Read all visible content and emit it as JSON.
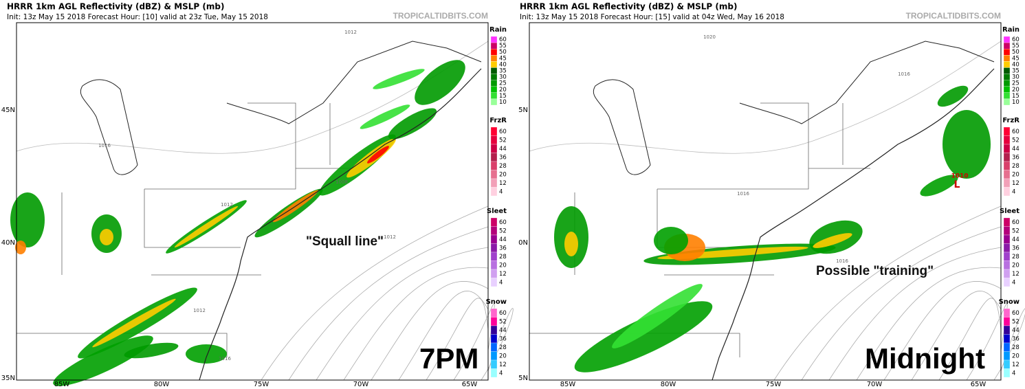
{
  "panels": [
    {
      "title": "HRRR 1km AGL Reflectivity (dBZ) & MSLP (mb)",
      "subtitle": "Init: 13z May 15 2018   Forecast Hour: [10]   valid at 23z Tue, May 15 2018",
      "watermark": "TROPICALTIDBITS.COM",
      "lat_labels": [
        "45N",
        "40N",
        "35N"
      ],
      "lon_labels": [
        "85W",
        "80W",
        "75W",
        "70W",
        "65W"
      ],
      "isobar_labels": [
        "1012",
        "1016",
        "1012",
        "1008",
        "1012",
        "1012",
        "1016"
      ],
      "annotation": "\"Squall line\"",
      "time_label": "7PM"
    },
    {
      "title": "HRRR 1km AGL Reflectivity (dBZ) & MSLP (mb)",
      "subtitle": "Init: 13z May 15 2018   Forecast Hour: [15]   valid at 04z Wed, May 16 2018",
      "watermark": "TROPICALTIDBITS.COM",
      "lat_labels": [
        "5N",
        "0N",
        "5N"
      ],
      "lon_labels": [
        "85W",
        "80W",
        "75W",
        "70W",
        "65W"
      ],
      "isobar_labels": [
        "1020",
        "1016",
        "1016",
        "1016",
        "1010",
        "L"
      ],
      "annotation": "Possible \"training\"",
      "time_label": "Midnight"
    }
  ],
  "legend": [
    {
      "name": "Rain",
      "labels": [
        60,
        55,
        50,
        45,
        40,
        35,
        30,
        25,
        20,
        15,
        10
      ],
      "colors": [
        "#ff33ff",
        "#cc0066",
        "#ff0000",
        "#ff8000",
        "#ffcc00",
        "#005a00",
        "#007a00",
        "#009a00",
        "#00c000",
        "#33e033",
        "#99ff99"
      ]
    },
    {
      "name": "FrzR",
      "labels": [
        60,
        52,
        44,
        36,
        28,
        20,
        12,
        4
      ],
      "colors": [
        "#ff0033",
        "#e6003d",
        "#cc0044",
        "#b3204d",
        "#d9406b",
        "#e6708f",
        "#f2a0b8",
        "#ffd0e0"
      ]
    },
    {
      "name": "Sleet",
      "labels": [
        60,
        52,
        44,
        36,
        28,
        20,
        12,
        4
      ],
      "colors": [
        "#cc0066",
        "#b3007a",
        "#99008f",
        "#8a1aa8",
        "#a040cc",
        "#b870e0",
        "#d0a0f0",
        "#e8d0ff"
      ]
    },
    {
      "name": "Snow",
      "labels": [
        60,
        52,
        44,
        36,
        28,
        20,
        12,
        4
      ],
      "colors": [
        "#ff66cc",
        "#ff0099",
        "#330099",
        "#0000cc",
        "#0066ff",
        "#0099ff",
        "#33ccff",
        "#99ffff"
      ]
    }
  ]
}
